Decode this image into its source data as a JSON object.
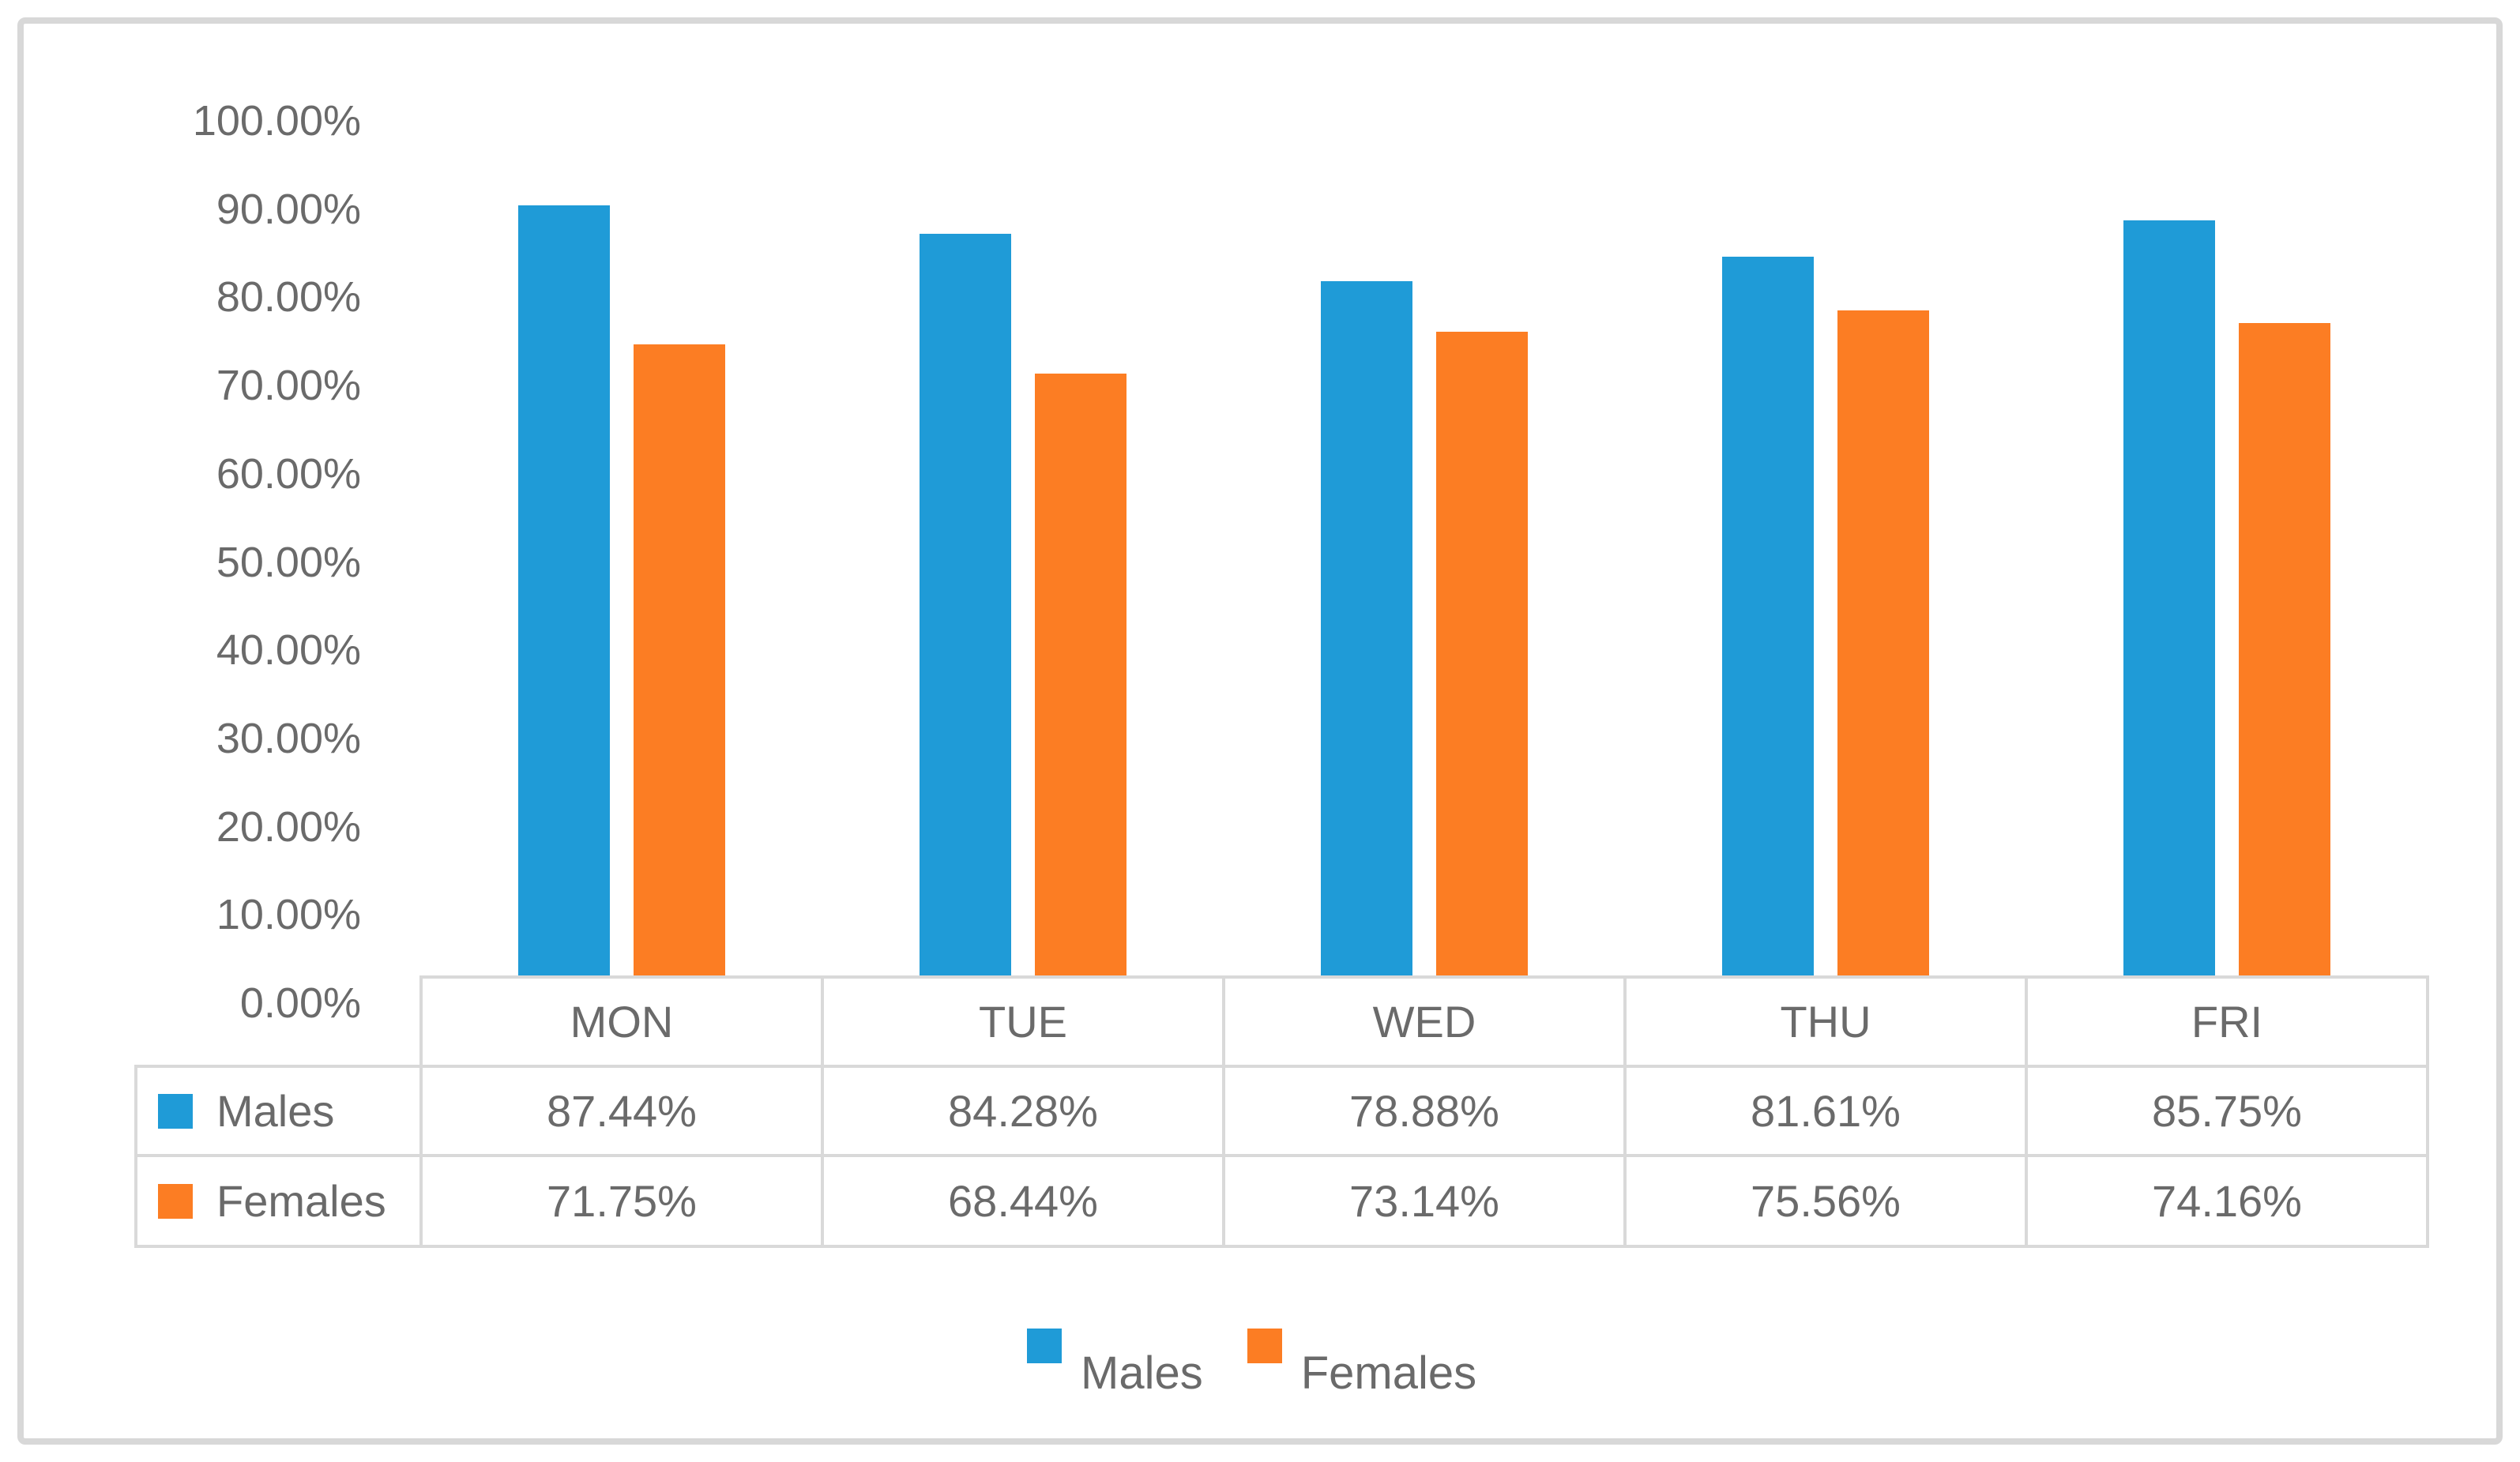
{
  "chart_data": {
    "type": "bar",
    "title": "",
    "categories": [
      "MON",
      "TUE",
      "WED",
      "THU",
      "FRI"
    ],
    "series": [
      {
        "name": "Males",
        "color": "#1f9bd7",
        "values": [
          87.44,
          84.28,
          78.88,
          81.61,
          85.75
        ],
        "labels": [
          "87.44%",
          "84.28%",
          "78.88%",
          "81.61%",
          "85.75%"
        ]
      },
      {
        "name": "Females",
        "color": "#fc7d23",
        "values": [
          71.75,
          68.44,
          73.14,
          75.56,
          74.16
        ],
        "labels": [
          "71.75%",
          "68.44%",
          "73.14%",
          "75.56%",
          "74.16%"
        ]
      }
    ],
    "y_axis": {
      "min": 0,
      "max": 100,
      "step": 10,
      "tick_labels": [
        "0.00%",
        "10.00%",
        "20.00%",
        "30.00%",
        "40.00%",
        "50.00%",
        "60.00%",
        "70.00%",
        "80.00%",
        "90.00%",
        "100.00%"
      ]
    },
    "grid": false,
    "legend_position": "bottom",
    "data_table_shown": true
  },
  "legend": {
    "items": [
      {
        "label": "Males",
        "color": "#1f9bd7"
      },
      {
        "label": "Females",
        "color": "#fc7d23"
      }
    ]
  },
  "colors": {
    "males_bar": "#1f9bd7",
    "females_bar": "#fc7d23",
    "text_gray": "#6a6a6a",
    "border_gray": "#d9d9d9",
    "frame_gray": "#d8d8d8",
    "background": "#ffffff"
  }
}
